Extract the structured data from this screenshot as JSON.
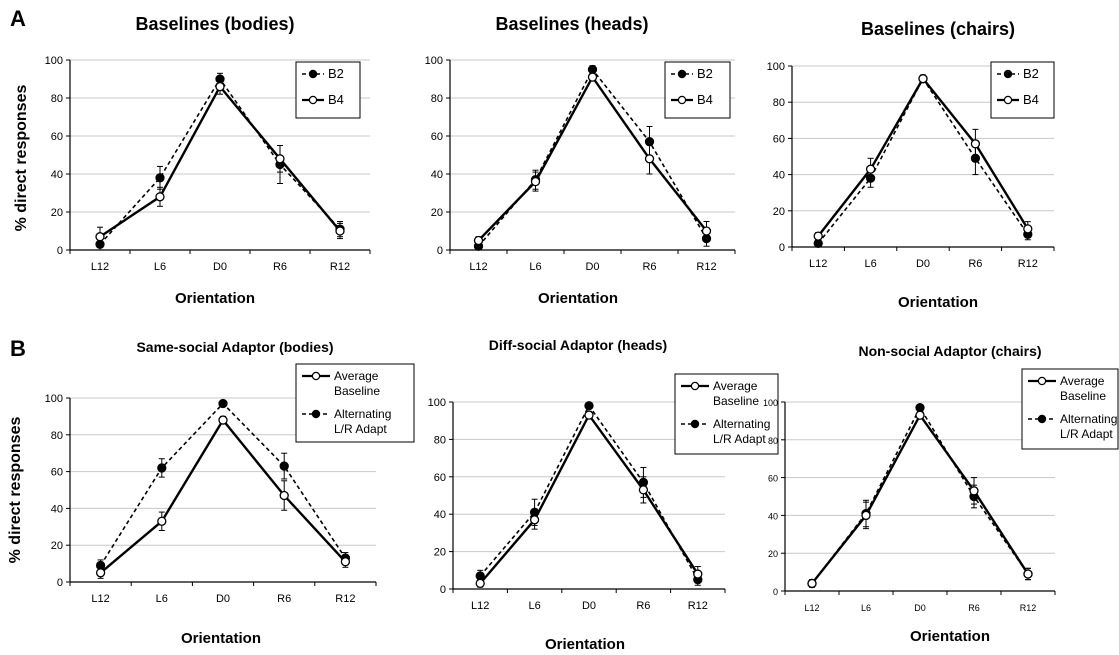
{
  "figure": {
    "panel_letters": [
      "A",
      "B"
    ],
    "ylabel": "% direct responses"
  },
  "chart_data": [
    {
      "type": "line",
      "title": "Baselines (bodies)",
      "xlabel": "Orientation",
      "categories": [
        "L12",
        "L6",
        "D0",
        "R6",
        "R12"
      ],
      "ylim": [
        0,
        100
      ],
      "yticks": [
        0,
        20,
        40,
        60,
        80,
        100
      ],
      "grid": true,
      "legend_position": "top-right",
      "series": [
        {
          "name": "B2",
          "style": "dashed",
          "marker": "filled",
          "values": [
            3,
            38,
            90,
            45,
            11
          ],
          "errors": [
            3,
            6,
            3,
            10,
            4
          ]
        },
        {
          "name": "B4",
          "style": "solid",
          "marker": "open",
          "values": [
            7,
            28,
            86,
            48,
            10
          ],
          "errors": [
            5,
            5,
            4,
            7,
            4
          ]
        }
      ]
    },
    {
      "type": "line",
      "title": "Baselines (heads)",
      "xlabel": "Orientation",
      "categories": [
        "L12",
        "L6",
        "D0",
        "R6",
        "R12"
      ],
      "ylim": [
        0,
        100
      ],
      "yticks": [
        0,
        20,
        40,
        60,
        80,
        100
      ],
      "grid": true,
      "legend_position": "top-right",
      "series": [
        {
          "name": "B2",
          "style": "dashed",
          "marker": "filled",
          "values": [
            2,
            37,
            95,
            57,
            6
          ],
          "errors": [
            2,
            5,
            2,
            8,
            4
          ]
        },
        {
          "name": "B4",
          "style": "solid",
          "marker": "open",
          "values": [
            5,
            36,
            91,
            48,
            10
          ],
          "errors": [
            2,
            5,
            2,
            8,
            5
          ]
        }
      ]
    },
    {
      "type": "line",
      "title": "Baselines (chairs)",
      "xlabel": "Orientation",
      "categories": [
        "L12",
        "L6",
        "D0",
        "R6",
        "R12"
      ],
      "ylim": [
        0,
        100
      ],
      "yticks": [
        0,
        20,
        40,
        60,
        80,
        100
      ],
      "grid": true,
      "legend_position": "top-right",
      "series": [
        {
          "name": "B2",
          "style": "dashed",
          "marker": "filled",
          "values": [
            2,
            38,
            93,
            49,
            7
          ],
          "errors": [
            2,
            5,
            2,
            9,
            3
          ]
        },
        {
          "name": "B4",
          "style": "solid",
          "marker": "open",
          "values": [
            6,
            43,
            93,
            57,
            10
          ],
          "errors": [
            2,
            6,
            2,
            8,
            4
          ]
        }
      ]
    },
    {
      "type": "line",
      "title": "Same-social Adaptor (bodies)",
      "xlabel": "Orientation",
      "categories": [
        "L12",
        "L6",
        "D0",
        "R6",
        "R12"
      ],
      "ylim": [
        0,
        100
      ],
      "yticks": [
        0,
        20,
        40,
        60,
        80,
        100
      ],
      "grid": true,
      "legend_position": "top-right",
      "series": [
        {
          "name": "Average Baseline",
          "label_lines": [
            "Average",
            "Baseline"
          ],
          "style": "solid",
          "marker": "open",
          "values": [
            5,
            33,
            88,
            47,
            11
          ],
          "errors": [
            3,
            5,
            2,
            8,
            3
          ]
        },
        {
          "name": "Alternating L/R Adapt",
          "label_lines": [
            "Alternating",
            "L/R Adapt"
          ],
          "style": "dashed",
          "marker": "filled",
          "values": [
            9,
            62,
            97,
            63,
            13
          ],
          "errors": [
            3,
            5,
            1,
            7,
            3
          ]
        }
      ]
    },
    {
      "type": "line",
      "title": "Diff-social Adaptor (heads)",
      "xlabel": "Orientation",
      "categories": [
        "L12",
        "L6",
        "D0",
        "R6",
        "R12"
      ],
      "ylim": [
        0,
        100
      ],
      "yticks": [
        0,
        20,
        40,
        60,
        80,
        100
      ],
      "grid": true,
      "legend_position": "top-right",
      "series": [
        {
          "name": "Average Baseline",
          "label_lines": [
            "Average",
            "Baseline"
          ],
          "style": "solid",
          "marker": "open",
          "values": [
            3,
            37,
            93,
            53,
            8
          ],
          "errors": [
            2,
            5,
            2,
            7,
            4
          ]
        },
        {
          "name": "Alternating L/R Adapt",
          "label_lines": [
            "Alternating",
            "L/R Adapt"
          ],
          "style": "dashed",
          "marker": "filled",
          "values": [
            7,
            41,
            98,
            57,
            5
          ],
          "errors": [
            3,
            7,
            1,
            8,
            3
          ]
        }
      ]
    },
    {
      "type": "line",
      "title": "Non-social Adaptor (chairs)",
      "xlabel": "Orientation",
      "categories": [
        "L12",
        "L6",
        "D0",
        "R6",
        "R12"
      ],
      "ylim": [
        0,
        100
      ],
      "yticks": [
        0,
        20,
        40,
        60,
        80,
        100
      ],
      "grid": true,
      "legend_position": "top-right",
      "series": [
        {
          "name": "Average Baseline",
          "label_lines": [
            "Average",
            "Baseline"
          ],
          "style": "solid",
          "marker": "open",
          "values": [
            4,
            40,
            93,
            53,
            9
          ],
          "errors": [
            2,
            7,
            2,
            7,
            3
          ]
        },
        {
          "name": "Alternating L/R Adapt",
          "label_lines": [
            "Alternating",
            "L/R Adapt"
          ],
          "style": "dashed",
          "marker": "filled",
          "values": [
            4,
            41,
            97,
            50,
            9
          ],
          "errors": [
            2,
            7,
            1,
            6,
            3
          ]
        }
      ]
    }
  ]
}
